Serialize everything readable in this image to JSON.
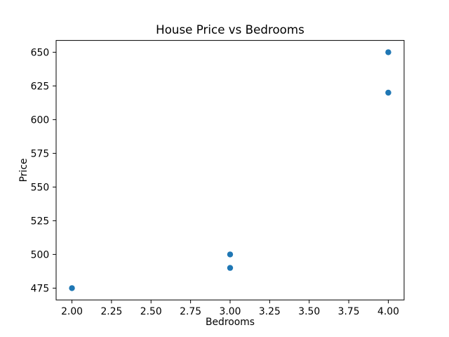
{
  "figure": {
    "background": "#ffffff",
    "frame_color": "#000000",
    "text_color": "#000000"
  },
  "chart_data": {
    "type": "scatter",
    "title": "House Price vs Bedrooms",
    "xlabel": "Bedrooms",
    "ylabel": "Price",
    "x": [
      2,
      3,
      3,
      4,
      4
    ],
    "y": [
      475,
      490,
      500,
      620,
      650
    ],
    "marker_color": "#1f77b4",
    "xlim": [
      1.9,
      4.1
    ],
    "ylim": [
      466.25,
      658.75
    ],
    "xticks": [
      2.0,
      2.25,
      2.5,
      2.75,
      3.0,
      3.25,
      3.5,
      3.75,
      4.0
    ],
    "xtick_labels": [
      "2.00",
      "2.25",
      "2.50",
      "2.75",
      "3.00",
      "3.25",
      "3.50",
      "3.75",
      "4.00"
    ],
    "yticks": [
      475,
      500,
      525,
      550,
      575,
      600,
      625,
      650
    ],
    "ytick_labels": [
      "475",
      "500",
      "525",
      "550",
      "575",
      "600",
      "625",
      "650"
    ],
    "grid": false,
    "legend": null
  }
}
